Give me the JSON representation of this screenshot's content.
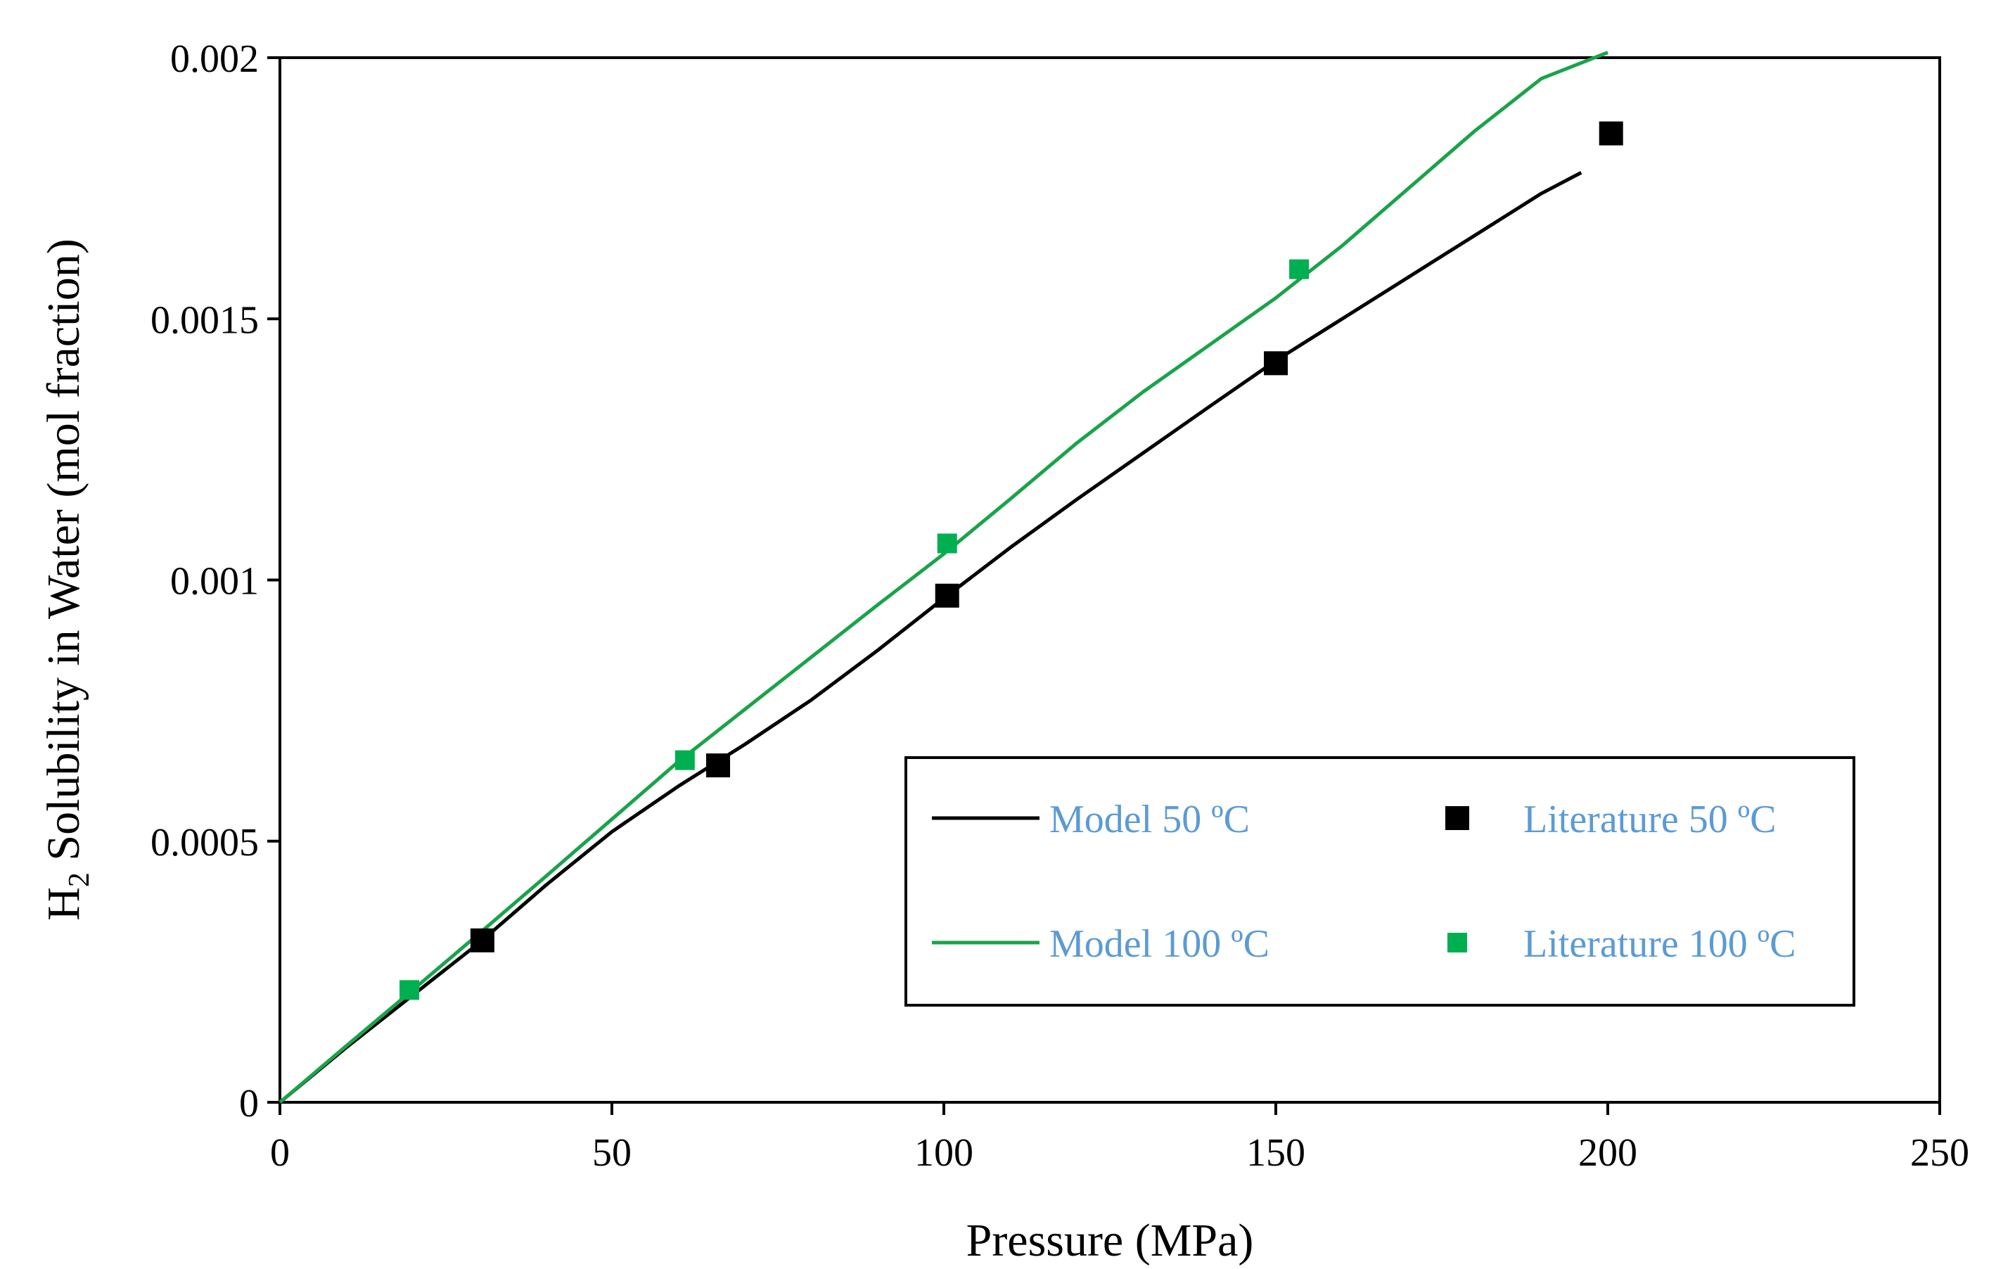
{
  "chart_data": {
    "type": "scatter",
    "xlabel": "Pressure (MPa)",
    "ylabel": {
      "prefix": "H",
      "subscript": "2",
      "suffix": " Solubility in Water (mol fraction)"
    },
    "xlim": [
      0,
      250
    ],
    "ylim": [
      0,
      0.002
    ],
    "x_ticks": [
      0,
      50,
      100,
      150,
      200,
      250
    ],
    "x_tick_labels": [
      "0",
      "50",
      "100",
      "150",
      "200",
      "250"
    ],
    "y_ticks": [
      0,
      0.0005,
      0.001,
      0.0015,
      0.002
    ],
    "y_tick_labels": [
      "0",
      "0.0005",
      "0.001",
      "0.0015",
      "0.002"
    ],
    "grid": false,
    "legend_position": "lower-right",
    "legend_text_color": "#5b9bd5",
    "series": [
      {
        "name": "Model 50 ºC",
        "kind": "line",
        "color": "#000000",
        "x": [
          0,
          10,
          20,
          30,
          40,
          50,
          60,
          70,
          80,
          90,
          100,
          110,
          120,
          130,
          140,
          150,
          160,
          170,
          180,
          190,
          196
        ],
        "y": [
          0,
          0.000105,
          0.000205,
          0.000305,
          0.000415,
          0.000518,
          0.000605,
          0.000685,
          0.00077,
          0.000865,
          0.000965,
          0.001062,
          0.001154,
          0.001243,
          0.001332,
          0.00142,
          0.0015,
          0.00158,
          0.00166,
          0.00174,
          0.00178
        ]
      },
      {
        "name": "Model 100 ºC",
        "kind": "line",
        "color": "#1aa34a",
        "x": [
          0,
          10,
          20,
          30,
          40,
          50,
          60,
          70,
          80,
          90,
          100,
          110,
          120,
          130,
          140,
          150,
          160,
          170,
          180,
          190,
          200
        ],
        "y": [
          0,
          0.000108,
          0.000215,
          0.000323,
          0.000432,
          0.000542,
          0.000652,
          0.000752,
          0.000852,
          0.000952,
          0.00105,
          0.001155,
          0.001262,
          0.00136,
          0.00145,
          0.00154,
          0.00164,
          0.00175,
          0.00186,
          0.00196,
          0.00201
        ]
      },
      {
        "name": "Literature 50 ºC",
        "kind": "scatter",
        "color": "#000000",
        "x": [
          30.5,
          66,
          100.5,
          150,
          200.5
        ],
        "y": [
          0.00031,
          0.000645,
          0.00097,
          0.001415,
          0.001855
        ]
      },
      {
        "name": "Literature 100 ºC",
        "kind": "scatter",
        "color": "#00b050",
        "x": [
          19.5,
          61,
          100.5,
          153.5
        ],
        "y": [
          0.000215,
          0.000655,
          0.00107,
          0.001595
        ]
      }
    ]
  }
}
